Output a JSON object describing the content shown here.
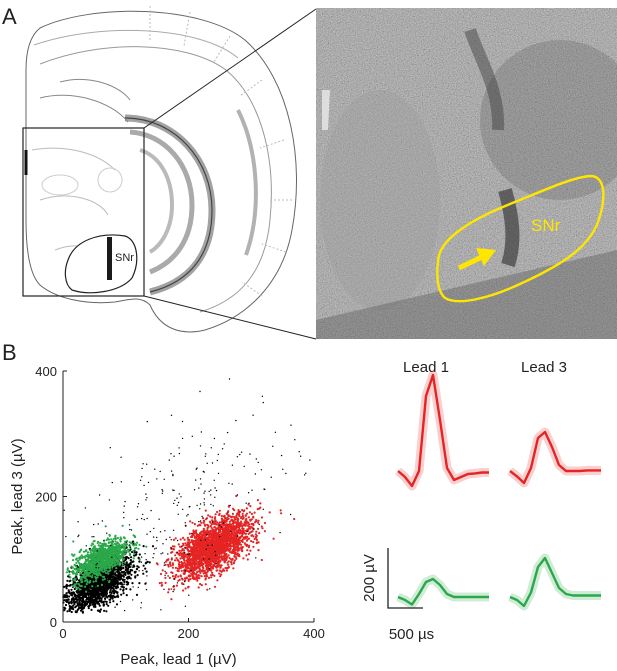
{
  "panel_a": {
    "label": "A",
    "atlas_region_label": "SNr",
    "micrograph_region_label": "SNr",
    "colors": {
      "outline": "#ffe600",
      "arrow": "#ffe600",
      "electrode_track": "#1a1a1a"
    }
  },
  "panel_b": {
    "label": "B",
    "colors": {
      "cluster_1": "#e52424",
      "cluster_2": "#2aa84a",
      "noise": "#000000"
    }
  },
  "chart_data": [
    {
      "type": "scatter",
      "title": "",
      "xlabel": "Peak, lead 1 (µV)",
      "ylabel": "Peak, lead 3 (µV)",
      "xlim": [
        0,
        400
      ],
      "ylim": [
        0,
        400
      ],
      "xticks": [
        0,
        200,
        400
      ],
      "yticks": [
        0,
        200,
        400
      ],
      "x_tick_labels": [
        "0",
        "200",
        "400"
      ],
      "y_tick_labels": [
        "0",
        "200",
        "400"
      ],
      "grid": false,
      "legend": "none",
      "series": [
        {
          "color": "#000000",
          "center": [
            55,
            60
          ],
          "spread": [
            28,
            24
          ],
          "count": 1700
        },
        {
          "color": "#2aa84a",
          "center": [
            60,
            100
          ],
          "spread": [
            22,
            17
          ],
          "count": 1000
        },
        {
          "color": "#e52424",
          "center": [
            240,
            120
          ],
          "spread": [
            30,
            24
          ],
          "count": 2300
        },
        {
          "color": "#000000",
          "center": [
            180,
            160
          ],
          "spread": [
            95,
            90
          ],
          "count": 320
        }
      ]
    },
    {
      "type": "line",
      "title": "",
      "column_labels": [
        "Lead 1",
        "Lead 3"
      ],
      "scale_bar": {
        "amplitude_label": "200 µV",
        "time_label": "500 µs",
        "amplitude": 200,
        "time": 500
      },
      "time_us": [
        0,
        100,
        200,
        300,
        400,
        500,
        600,
        700,
        800,
        900,
        1000,
        1100,
        1200,
        1300
      ],
      "waveforms": [
        {
          "unit": "red",
          "lead": "Lead 1",
          "color": "#e52424",
          "values": [
            -20,
            -40,
            -70,
            -20,
            230,
            300,
            150,
            -10,
            -50,
            -40,
            -30,
            -28,
            -25,
            -25
          ]
        },
        {
          "unit": "red",
          "lead": "Lead 3",
          "color": "#e52424",
          "values": [
            -20,
            -38,
            -60,
            -10,
            90,
            110,
            60,
            0,
            -20,
            -20,
            -20,
            -18,
            -18,
            -18
          ]
        },
        {
          "unit": "green",
          "lead": "Lead 1",
          "color": "#2aa84a",
          "values": [
            0,
            -10,
            -25,
            10,
            50,
            60,
            40,
            10,
            0,
            0,
            0,
            0,
            0,
            0
          ]
        },
        {
          "unit": "green",
          "lead": "Lead 3",
          "color": "#2aa84a",
          "values": [
            0,
            -10,
            -30,
            15,
            100,
            130,
            80,
            30,
            10,
            5,
            5,
            5,
            5,
            5
          ]
        }
      ]
    }
  ]
}
